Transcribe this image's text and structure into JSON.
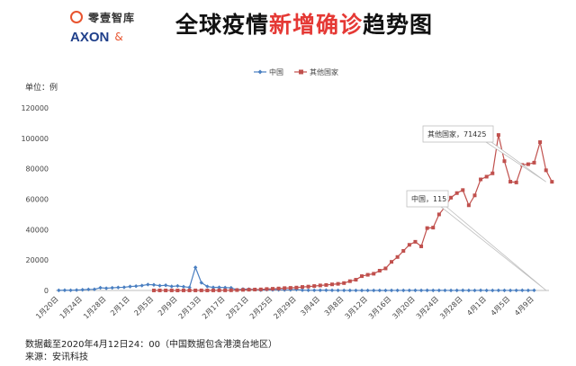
{
  "brand": {
    "cn": "零壹智库",
    "en": "AXON",
    "mark": "&"
  },
  "title_normal_1": "全球疫情",
  "title_highlight": "新增确诊",
  "title_normal_2": "趋势图",
  "unit_label": "单位：例",
  "footer": {
    "note": "数据截至2020年4月12日24：00（中国数据包含港澳台地区）",
    "source": "来源：安讯科技"
  },
  "colors": {
    "china": "#4a7fc1",
    "others": "#c0504d",
    "title_accent": "#e53935"
  },
  "chart_data": {
    "type": "line",
    "title": "全球疫情新增确诊趋势图",
    "ylabel": "单位：例",
    "ylim": [
      0,
      120000
    ],
    "yticks": [
      0,
      20000,
      40000,
      60000,
      80000,
      100000,
      120000
    ],
    "legend": "top-center",
    "grid": false,
    "x_start": "1月20日",
    "x_tick_labels": [
      "1月20日",
      "1月24日",
      "1月28日",
      "2月1日",
      "2月5日",
      "2月9日",
      "2月13日",
      "2月17日",
      "2月21日",
      "2月25日",
      "2月29日",
      "3月4日",
      "3月8日",
      "3月12日",
      "3月16日",
      "3月20日",
      "3月24日",
      "3月28日",
      "4月1日",
      "4月5日",
      "4月9日"
    ],
    "x_tick_step_days": 4,
    "series": [
      {
        "name": "中国",
        "start_day": 0,
        "values": [
          77,
          149,
          131,
          259,
          444,
          688,
          769,
          1771,
          1459,
          1737,
          1981,
          2102,
          2590,
          2829,
          3235,
          3887,
          3694,
          3143,
          3399,
          2656,
          2987,
          2478,
          2015,
          15152,
          5090,
          2641,
          2009,
          2048,
          1888,
          1749,
          391,
          889,
          823,
          648,
          214,
          508,
          406,
          433,
          327,
          427,
          573,
          202,
          125,
          119,
          139,
          143,
          99,
          44,
          40,
          19,
          24,
          15,
          21,
          20,
          16,
          13,
          39,
          41,
          46,
          39,
          78,
          47,
          67,
          55,
          54,
          45,
          31,
          48,
          76,
          36,
          35,
          83,
          26,
          31,
          39,
          39,
          30,
          62,
          99,
          46,
          108
        ],
        "annotation": {
          "label": "中国，115",
          "value": 115
        }
      },
      {
        "name": "其他国家",
        "start_day": 16,
        "values": [
          20,
          35,
          25,
          38,
          15,
          50,
          35,
          40,
          50,
          20,
          60,
          80,
          90,
          120,
          250,
          400,
          500,
          600,
          700,
          950,
          1100,
          1300,
          1550,
          1700,
          1900,
          2300,
          2550,
          2900,
          3300,
          3600,
          4000,
          4350,
          4850,
          6100,
          7050,
          9400,
          10300,
          11000,
          13000,
          14500,
          18800,
          22000,
          26000,
          30000,
          32000,
          29000,
          41000,
          41300,
          50000,
          55000,
          61000,
          64000,
          66000,
          56000,
          62500,
          73000,
          74800,
          77000,
          102200,
          85000,
          71500,
          71000,
          82500,
          83000,
          84000,
          97500,
          79000,
          71425
        ],
        "annotation": {
          "label": "其他国家，71425",
          "value": 71425
        }
      }
    ]
  }
}
